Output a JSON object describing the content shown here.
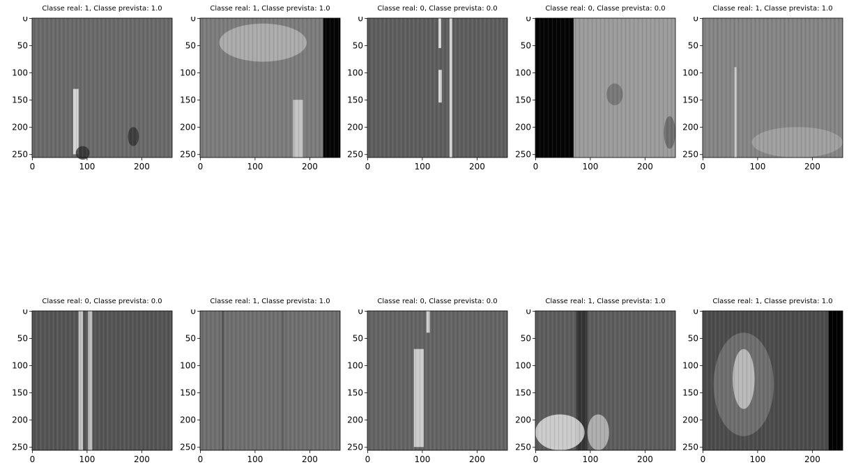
{
  "figure": {
    "panels": [
      {
        "title": "Classe real: 1, Classe prevista: 1.0",
        "tone": "#6a6a6a",
        "features": [
          {
            "kind": "streak",
            "x": 75,
            "y": 130,
            "w": 10,
            "h": 120,
            "c": "#e6e6e6"
          },
          {
            "kind": "blob",
            "x": 175,
            "y": 200,
            "w": 20,
            "h": 35,
            "c": "#2f2f2f"
          },
          {
            "kind": "blob",
            "x": 80,
            "y": 235,
            "w": 25,
            "h": 25,
            "c": "#2a2a2a"
          }
        ]
      },
      {
        "title": "Classe real: 1, Classe prevista: 1.0",
        "tone": "#7c7c7c",
        "features": [
          {
            "kind": "band",
            "x": 225,
            "y": 0,
            "w": 31,
            "h": 256,
            "c": "#050505"
          },
          {
            "kind": "blob",
            "x": 35,
            "y": 10,
            "w": 160,
            "h": 70,
            "c": "#b9b9b9"
          },
          {
            "kind": "streak",
            "x": 170,
            "y": 150,
            "w": 18,
            "h": 106,
            "c": "#cfcfcf"
          }
        ]
      },
      {
        "title": "Classe real: 0, Classe prevista: 0.0",
        "tone": "#5e5e5e",
        "features": [
          {
            "kind": "streak",
            "x": 130,
            "y": 0,
            "w": 5,
            "h": 55,
            "c": "#f2f2f2"
          },
          {
            "kind": "streak",
            "x": 130,
            "y": 95,
            "w": 6,
            "h": 60,
            "c": "#f0f0f0"
          },
          {
            "kind": "streak",
            "x": 150,
            "y": 0,
            "w": 5,
            "h": 256,
            "c": "#e8e8e8"
          }
        ]
      },
      {
        "title": "Classe real: 0, Classe prevista: 0.0",
        "tone": "#9b9b9b",
        "features": [
          {
            "kind": "band",
            "x": 0,
            "y": 0,
            "w": 70,
            "h": 256,
            "c": "#050505"
          },
          {
            "kind": "blob",
            "x": 130,
            "y": 120,
            "w": 30,
            "h": 40,
            "c": "#6c6c6c"
          },
          {
            "kind": "blob",
            "x": 235,
            "y": 180,
            "w": 21,
            "h": 60,
            "c": "#5f5f5f"
          }
        ]
      },
      {
        "title": "Classe real: 1, Classe prevista: 1.0",
        "tone": "#858585",
        "features": [
          {
            "kind": "streak",
            "x": 58,
            "y": 90,
            "w": 4,
            "h": 166,
            "c": "#d6d6d6"
          },
          {
            "kind": "blob",
            "x": 90,
            "y": 200,
            "w": 166,
            "h": 56,
            "c": "#a8a8a8"
          }
        ]
      },
      {
        "title": "Classe real: 0, Classe prevista: 0.0",
        "tone": "#555555",
        "features": [
          {
            "kind": "streak",
            "x": 85,
            "y": 0,
            "w": 8,
            "h": 256,
            "c": "#d8d8d8"
          },
          {
            "kind": "streak",
            "x": 102,
            "y": 0,
            "w": 8,
            "h": 256,
            "c": "#d0d0d0"
          }
        ]
      },
      {
        "title": "Classe real: 1, Classe prevista: 1.0",
        "tone": "#6f6f6f",
        "features": [
          {
            "kind": "streak",
            "x": 40,
            "y": 0,
            "w": 3,
            "h": 256,
            "c": "#4a4a4a"
          },
          {
            "kind": "streak",
            "x": 150,
            "y": 0,
            "w": 3,
            "h": 256,
            "c": "#5a5a5a"
          }
        ]
      },
      {
        "title": "Classe real: 0, Classe prevista: 0.0",
        "tone": "#646464",
        "features": [
          {
            "kind": "streak",
            "x": 85,
            "y": 70,
            "w": 18,
            "h": 180,
            "c": "#dedede"
          },
          {
            "kind": "streak",
            "x": 108,
            "y": 0,
            "w": 6,
            "h": 40,
            "c": "#e6e6e6"
          }
        ]
      },
      {
        "title": "Classe real: 1, Classe prevista: 1.0",
        "tone": "#5d5d5d",
        "features": [
          {
            "kind": "streak",
            "x": 75,
            "y": 0,
            "w": 20,
            "h": 256,
            "c": "#2e2e2e"
          },
          {
            "kind": "blob",
            "x": 0,
            "y": 190,
            "w": 90,
            "h": 66,
            "c": "#f0f0f0"
          },
          {
            "kind": "blob",
            "x": 95,
            "y": 190,
            "w": 40,
            "h": 66,
            "c": "#c8c8c8"
          }
        ]
      },
      {
        "title": "Classe real: 1, Classe prevista: 1.0",
        "tone": "#4c4c4c",
        "features": [
          {
            "kind": "band",
            "x": 230,
            "y": 0,
            "w": 26,
            "h": 256,
            "c": "#030303"
          },
          {
            "kind": "blob",
            "x": 20,
            "y": 40,
            "w": 110,
            "h": 190,
            "c": "#7a7a7a"
          },
          {
            "kind": "blob",
            "x": 55,
            "y": 70,
            "w": 40,
            "h": 110,
            "c": "#d2d2d2"
          }
        ]
      }
    ],
    "axis": {
      "xticks": [
        "0",
        "100",
        "200"
      ],
      "yticks": [
        "0",
        "50",
        "100",
        "150",
        "200",
        "250"
      ]
    }
  }
}
